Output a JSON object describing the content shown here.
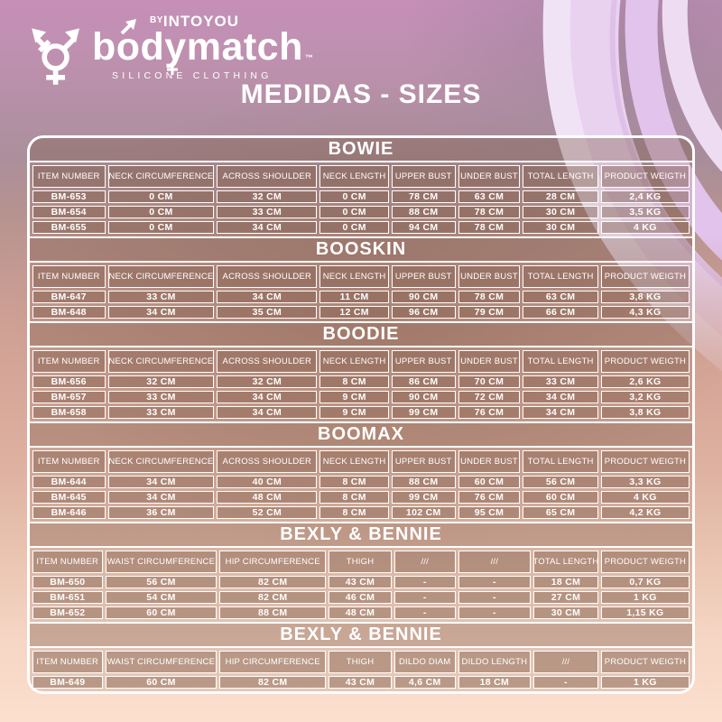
{
  "brand": {
    "by": "BY",
    "name": "INTOYOU",
    "wordmark": "bodymatch",
    "trademark": "™",
    "tagline": "SILICONE CLOTHING"
  },
  "page_title": "MEDIDAS - SIZES",
  "tables": [
    {
      "title": "BOWIE",
      "headers": [
        "ITEM NUMBER",
        "NECK CIRCUMFERENCE",
        "ACROSS SHOULDER",
        "NECK LENGTH",
        "UPPER BUST",
        "UNDER BUST",
        "TOTAL LENGTH",
        "PRODUCT WEIGTH"
      ],
      "rows": [
        [
          "BM-653",
          "0 CM",
          "32 CM",
          "0 CM",
          "78 CM",
          "63 CM",
          "28 CM",
          "2,4 KG"
        ],
        [
          "BM-654",
          "0 CM",
          "33 CM",
          "0 CM",
          "88 CM",
          "78 CM",
          "30 CM",
          "3,5 KG"
        ],
        [
          "BM-655",
          "0 CM",
          "34 CM",
          "0 CM",
          "94 CM",
          "78 CM",
          "30 CM",
          "4 KG"
        ]
      ]
    },
    {
      "title": "BOOSKIN",
      "headers": [
        "ITEM NUMBER",
        "NECK CIRCUMFERENCE",
        "ACROSS SHOULDER",
        "NECK LENGTH",
        "UPPER BUST",
        "UNDER BUST",
        "TOTAL LENGTH",
        "PRODUCT WEIGTH"
      ],
      "rows": [
        [
          "BM-647",
          "33 CM",
          "34 CM",
          "11 CM",
          "90 CM",
          "78 CM",
          "63 CM",
          "3,8 KG"
        ],
        [
          "BM-648",
          "34 CM",
          "35 CM",
          "12 CM",
          "96 CM",
          "79 CM",
          "66 CM",
          "4,3 KG"
        ]
      ]
    },
    {
      "title": "BOODIE",
      "headers": [
        "ITEM NUMBER",
        "NECK CIRCUMFERENCE",
        "ACROSS SHOULDER",
        "NECK LENGTH",
        "UPPER BUST",
        "UNDER BUST",
        "TOTAL LENGTH",
        "PRODUCT WEIGTH"
      ],
      "rows": [
        [
          "BM-656",
          "32 CM",
          "32 CM",
          "8 CM",
          "86 CM",
          "70 CM",
          "33 CM",
          "2,6 KG"
        ],
        [
          "BM-657",
          "33 CM",
          "34 CM",
          "9 CM",
          "90 CM",
          "72 CM",
          "34 CM",
          "3,2 KG"
        ],
        [
          "BM-658",
          "33 CM",
          "34 CM",
          "9 CM",
          "99 CM",
          "76 CM",
          "34 CM",
          "3,8 KG"
        ]
      ]
    },
    {
      "title": "BOOMAX",
      "headers": [
        "ITEM NUMBER",
        "NECK CIRCUMFERENCE",
        "ACROSS SHOULDER",
        "NECK LENGTH",
        "UPPER BUST",
        "UNDER BUST",
        "TOTAL LENGTH",
        "PRODUCT WEIGTH"
      ],
      "rows": [
        [
          "BM-644",
          "34 CM",
          "40 CM",
          "8 CM",
          "88 CM",
          "60 CM",
          "56 CM",
          "3,3 KG"
        ],
        [
          "BM-645",
          "34 CM",
          "48 CM",
          "8 CM",
          "99 CM",
          "76 CM",
          "60 CM",
          "4 KG"
        ],
        [
          "BM-646",
          "36 CM",
          "52 CM",
          "8 CM",
          "102 CM",
          "95 CM",
          "65 CM",
          "4,2 KG"
        ]
      ]
    },
    {
      "title": "BEXLY & BENNIE",
      "headers": [
        "ITEM NUMBER",
        "WAIST CIRCUMFERENCE",
        "HIP CIRCUMFERENCE",
        "THIGH",
        "///",
        "///",
        "TOTAL LENGTH",
        "PRODUCT WEIGTH"
      ],
      "rows": [
        [
          "BM-650",
          "56 CM",
          "82 CM",
          "43 CM",
          "-",
          "-",
          "18 CM",
          "0,7 KG"
        ],
        [
          "BM-651",
          "54 CM",
          "82 CM",
          "46 CM",
          "-",
          "-",
          "27 CM",
          "1 KG"
        ],
        [
          "BM-652",
          "60 CM",
          "88 CM",
          "48 CM",
          "-",
          "-",
          "30 CM",
          "1,15 KG"
        ]
      ]
    },
    {
      "title": "BEXLY & BENNIE",
      "headers": [
        "ITEM NUMBER",
        "WAIST CIRCUMFERENCE",
        "HIP CIRCUMFERENCE",
        "THIGH",
        "DILDO DIAM",
        "DILDO LENGTH",
        "///",
        "PRODUCT WEIGTH"
      ],
      "rows": [
        [
          "BM-649",
          "60 CM",
          "82 CM",
          "43 CM",
          "4,6 CM",
          "18 CM",
          "-",
          "1 KG"
        ]
      ]
    }
  ],
  "icons": {
    "logo": "transgender-symbol",
    "wordmark_o": "male-arrow",
    "wordmark_y": "female-cross"
  },
  "colors": {
    "text": "#ffffff",
    "table_border": "#ffffff",
    "background_top": "#c68fb8",
    "background_mid": "#d7a899",
    "background_bottom": "#fcdfce",
    "ribbon_light": "#f1e3f6",
    "ribbon_mid": "#e9d2f0",
    "ribbon_deep": "#e2c3eb"
  }
}
